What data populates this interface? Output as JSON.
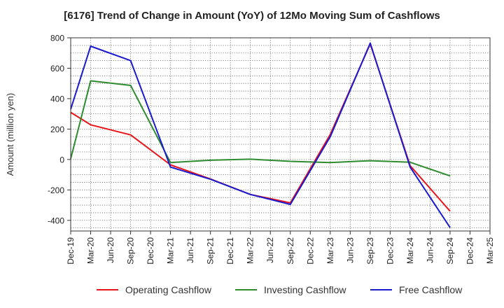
{
  "chart_data": {
    "type": "line",
    "title": "[6176]  Trend of Change in Amount (YoY) of 12Mo Moving Sum of Cashflows",
    "xlabel": "",
    "ylabel": "Amount (million yen)",
    "ylim": [
      -470,
      800
    ],
    "yticks": [
      -400,
      -200,
      0,
      200,
      400,
      600,
      800
    ],
    "grid": true,
    "legend_position": "bottom",
    "categories": [
      "Dec-19",
      "Mar-20",
      "Jun-20",
      "Sep-20",
      "Dec-20",
      "Mar-21",
      "Jun-21",
      "Sep-21",
      "Dec-21",
      "Mar-22",
      "Jun-22",
      "Sep-22",
      "Dec-22",
      "Mar-23",
      "Jun-23",
      "Sep-23",
      "Dec-23",
      "Mar-24",
      "Jun-24",
      "Sep-24",
      "Dec-24",
      "Mar-25"
    ],
    "series": [
      {
        "name": "Operating Cashflow",
        "color": "#e8141a",
        "values": [
          310,
          228,
          null,
          162,
          null,
          -35,
          null,
          -128,
          null,
          -230,
          null,
          -285,
          null,
          165,
          null,
          760,
          null,
          -40,
          null,
          -340,
          null,
          null
        ]
      },
      {
        "name": "Investing Cashflow",
        "color": "#2e8b2e",
        "values": [
          5,
          517,
          null,
          487,
          null,
          -20,
          null,
          -5,
          null,
          2,
          null,
          -12,
          null,
          -20,
          null,
          -8,
          null,
          -18,
          null,
          -108,
          null,
          null
        ]
      },
      {
        "name": "Free Cashflow",
        "color": "#1a1ad0",
        "values": [
          330,
          745,
          null,
          650,
          null,
          -50,
          null,
          -130,
          null,
          -230,
          null,
          -295,
          null,
          150,
          null,
          765,
          null,
          -50,
          null,
          -448,
          null,
          null
        ]
      }
    ]
  }
}
